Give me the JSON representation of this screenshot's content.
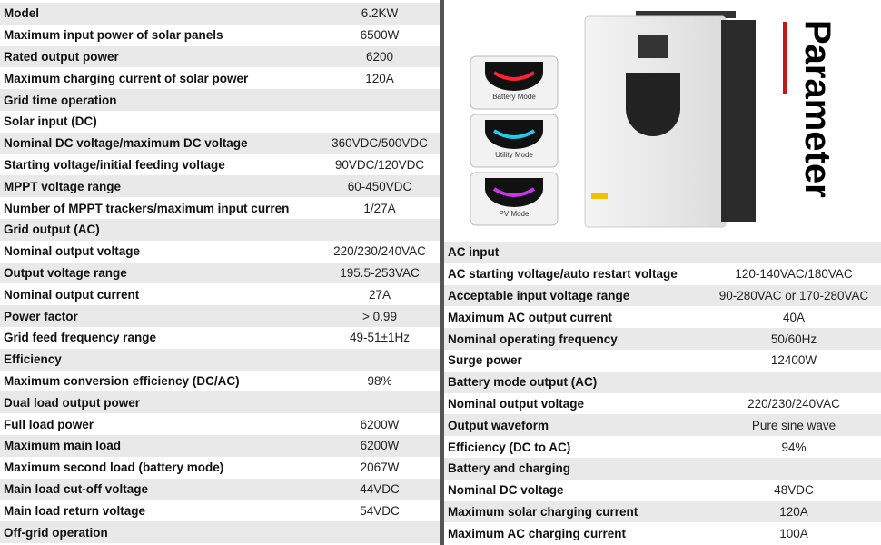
{
  "left_table": {
    "rows": [
      [
        "Model",
        "6.2KW"
      ],
      [
        "Maximum input power of solar panels",
        "6500W"
      ],
      [
        "Rated output power",
        "6200"
      ],
      [
        "Maximum charging current of solar power",
        "120A"
      ],
      [
        "Grid time operation"
      ],
      [
        "Solar input (DC)"
      ],
      [
        "Nominal DC voltage/maximum DC voltage",
        "360VDC/500VDC"
      ],
      [
        "Starting voltage/initial feeding voltage",
        "90VDC/120VDC"
      ],
      [
        "MPPT voltage range",
        "60-450VDC"
      ],
      [
        "Number of MPPT trackers/maximum input curren",
        "1/27A"
      ],
      [
        "Grid output (AC)"
      ],
      [
        "Nominal output voltage",
        "220/230/240VAC"
      ],
      [
        "Output voltage range",
        "195.5-253VAC"
      ],
      [
        "Nominal output current",
        "27A"
      ],
      [
        "Power factor",
        "> 0.99"
      ],
      [
        "Grid feed frequency range",
        "49-51±1Hz"
      ],
      [
        "Efficiency"
      ],
      [
        "Maximum conversion efficiency (DC/AC)",
        "98%"
      ],
      [
        "Dual load output power"
      ],
      [
        "Full load power",
        "6200W"
      ],
      [
        "Maximum main load",
        "6200W"
      ],
      [
        "Maximum second load (battery mode)",
        "2067W"
      ],
      [
        "Main load cut-off voltage",
        "44VDC"
      ],
      [
        "Main load return voltage",
        "54VDC"
      ],
      [
        "Off-grid operation"
      ]
    ]
  },
  "right_table": {
    "rows": [
      [
        "AC input"
      ],
      [
        "AC starting voltage/auto restart voltage",
        "120-140VAC/180VAC"
      ],
      [
        "Acceptable input voltage range",
        "90-280VAC or 170-280VAC"
      ],
      [
        "Maximum AC output current",
        "40A"
      ],
      [
        "Nominal operating frequency",
        "50/60Hz"
      ],
      [
        "Surge power",
        "12400W"
      ],
      [
        "Battery mode output (AC)"
      ],
      [
        "Nominal output voltage",
        "220/230/240VAC"
      ],
      [
        "Output waveform",
        "Pure sine wave"
      ],
      [
        "Efficiency (DC to AC)",
        "94%"
      ],
      [
        "Battery and charging"
      ],
      [
        "Nominal DC voltage",
        "48VDC"
      ],
      [
        "Maximum solar charging current",
        "120A"
      ],
      [
        "Maximum AC charging current",
        "100A"
      ]
    ]
  },
  "product": {
    "modes": [
      "Battery Mode",
      "Utility Mode",
      "PV Mode"
    ],
    "heading": "Parameter"
  }
}
